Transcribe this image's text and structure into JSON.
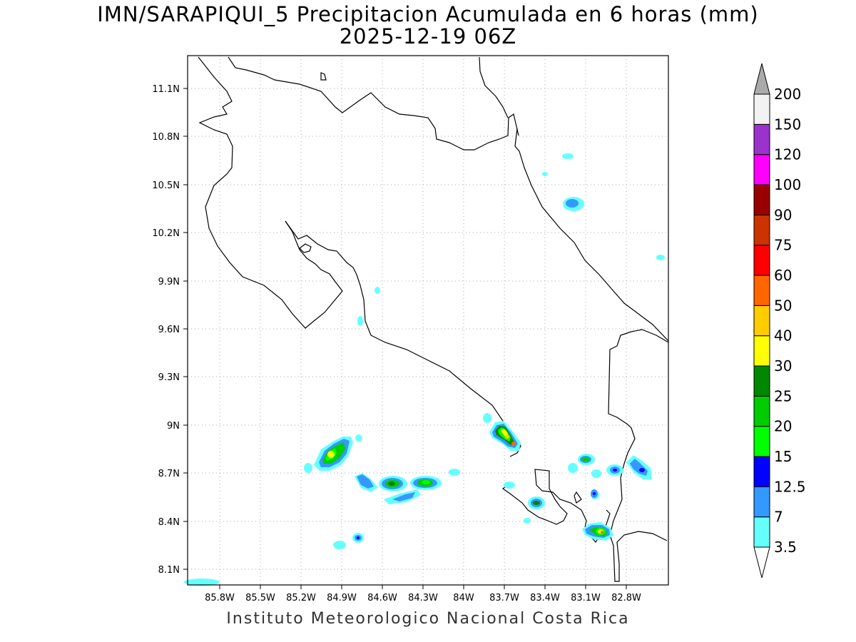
{
  "title": {
    "line1": "IMN/SARAPIQUI_5 Precipitacion Acumulada en 6 horas (mm)",
    "line2": "2025-12-19 06Z"
  },
  "credit": "Instituto Meteorologico Nacional Costa Rica",
  "axes": {
    "x_ticks": [
      "85.8W",
      "85.5W",
      "85.2W",
      "84.9W",
      "84.6W",
      "84.3W",
      "84W",
      "83.7W",
      "83.4W",
      "83.1W",
      "82.8W"
    ],
    "y_ticks": [
      "11.1N",
      "10.8N",
      "10.5N",
      "10.2N",
      "9.9N",
      "9.6N",
      "9.3N",
      "9N",
      "8.7N",
      "8.4N",
      "8.1N"
    ],
    "grid": "dotted"
  },
  "colorbar": {
    "labels": [
      "3.5",
      "7",
      "12.5",
      "15",
      "20",
      "25",
      "30",
      "40",
      "50",
      "60",
      "75",
      "90",
      "100",
      "120",
      "150",
      "200"
    ],
    "colors": [
      "#66ffff",
      "#3399ff",
      "#0000ff",
      "#00ff00",
      "#00cc00",
      "#008800",
      "#ffff00",
      "#ffcc00",
      "#ff6600",
      "#ff0000",
      "#cc3300",
      "#990000",
      "#ff00ff",
      "#9933cc",
      "#f2f2f2"
    ],
    "over_color": "#aaaaaa",
    "under_color": "#ffffff"
  }
}
